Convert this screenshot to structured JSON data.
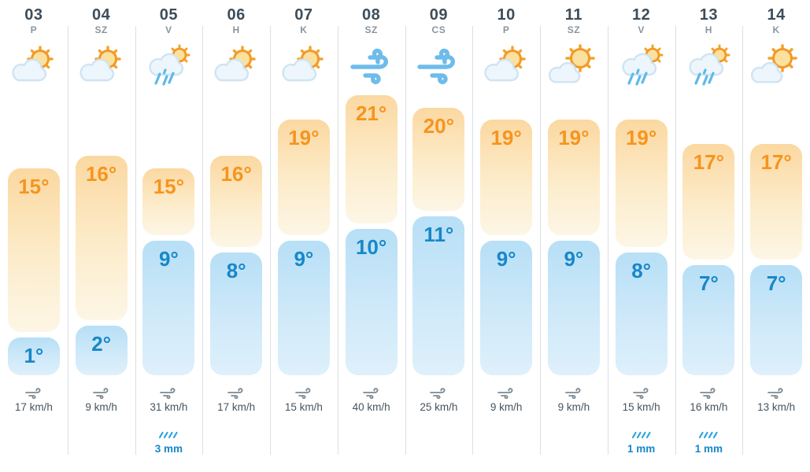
{
  "widget": {
    "name": "12-day weather forecast strip",
    "temperature_unit": "°C",
    "wind_unit": "km/h",
    "precipitation_unit": "mm"
  },
  "colors": {
    "day_number": "#3e4d59",
    "day_abbreviation": "#8b959d",
    "high_temp_text": "#f7941d",
    "low_temp_text": "#1787ca",
    "high_bar_top": "#fbd8a1",
    "high_bar_bottom": "#fdf6e6",
    "low_bar_top": "#b7dff6",
    "low_bar_bottom": "#def0fb",
    "wind_text": "#47545e",
    "wind_icon": "#7d8a93",
    "precip_text": "#1787ca",
    "precip_icon": "#2ba3e0",
    "divider": "#dbe0e4",
    "sun": "#f5a328",
    "cloud_fill": "#edf6fc"
  },
  "days": [
    {
      "date": "03",
      "day": "P",
      "icon": "partly-cloudy",
      "high": 15,
      "low": 1,
      "high_label": "15°",
      "low_label": "1°",
      "wind": "17 km/h",
      "precip": null
    },
    {
      "date": "04",
      "day": "SZ",
      "icon": "partly-cloudy",
      "high": 16,
      "low": 2,
      "high_label": "16°",
      "low_label": "2°",
      "wind": "9 km/h",
      "precip": null
    },
    {
      "date": "05",
      "day": "V",
      "icon": "rain-sun",
      "high": 15,
      "low": 9,
      "high_label": "15°",
      "low_label": "9°",
      "wind": "31 km/h",
      "precip": "3 mm"
    },
    {
      "date": "06",
      "day": "H",
      "icon": "partly-cloudy",
      "high": 16,
      "low": 8,
      "high_label": "16°",
      "low_label": "8°",
      "wind": "17 km/h",
      "precip": null
    },
    {
      "date": "07",
      "day": "K",
      "icon": "partly-cloudy",
      "high": 19,
      "low": 9,
      "high_label": "19°",
      "low_label": "9°",
      "wind": "15 km/h",
      "precip": null
    },
    {
      "date": "08",
      "day": "SZ",
      "icon": "wind",
      "high": 21,
      "low": 10,
      "high_label": "21°",
      "low_label": "10°",
      "wind": "40 km/h",
      "precip": null
    },
    {
      "date": "09",
      "day": "CS",
      "icon": "wind",
      "high": 20,
      "low": 11,
      "high_label": "20°",
      "low_label": "11°",
      "wind": "25 km/h",
      "precip": null
    },
    {
      "date": "10",
      "day": "P",
      "icon": "partly-cloudy",
      "high": 19,
      "low": 9,
      "high_label": "19°",
      "low_label": "9°",
      "wind": "9 km/h",
      "precip": null
    },
    {
      "date": "11",
      "day": "SZ",
      "icon": "mostly-sunny",
      "high": 19,
      "low": 9,
      "high_label": "19°",
      "low_label": "9°",
      "wind": "9 km/h",
      "precip": null
    },
    {
      "date": "12",
      "day": "V",
      "icon": "rain-sun",
      "high": 19,
      "low": 8,
      "high_label": "19°",
      "low_label": "8°",
      "wind": "15 km/h",
      "precip": "1 mm"
    },
    {
      "date": "13",
      "day": "H",
      "icon": "rain-sun",
      "high": 17,
      "low": 7,
      "high_label": "17°",
      "low_label": "7°",
      "wind": "16 km/h",
      "precip": "1 mm"
    },
    {
      "date": "14",
      "day": "K",
      "icon": "mostly-sunny",
      "high": 17,
      "low": 7,
      "high_label": "17°",
      "low_label": "7°",
      "wind": "13 km/h",
      "precip": null
    }
  ]
}
